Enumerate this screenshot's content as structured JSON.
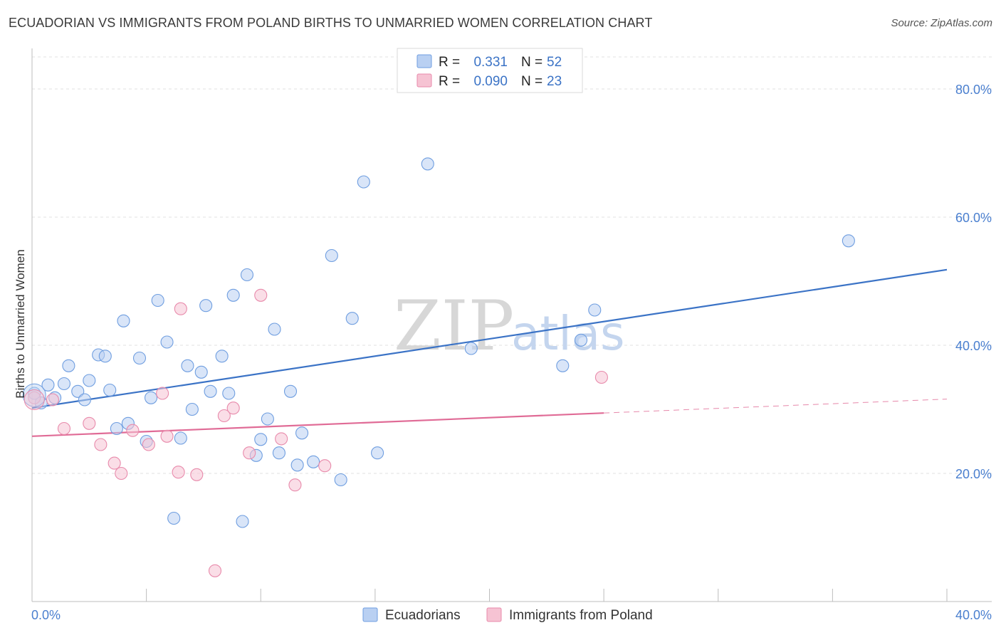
{
  "title": "ECUADORIAN VS IMMIGRANTS FROM POLAND BIRTHS TO UNMARRIED WOMEN CORRELATION CHART",
  "source": "Source: ZipAtlas.com",
  "watermark": {
    "zip": "ZIP",
    "atlas": "atlas"
  },
  "colors": {
    "blue": "#3b73c6",
    "blue_fill": "#b9d0f2",
    "pink": "#e06b96",
    "pink_fill": "#f6c3d3",
    "grid": "#e2e2e2",
    "tick_text": "#4a7fcf"
  },
  "legend": {
    "rows": [
      {
        "r_label": "R = ",
        "r_value": "0.331",
        "n_label": "N = ",
        "n_value": "52"
      },
      {
        "r_label": "R = ",
        "r_value": "0.090",
        "n_label": "N = ",
        "n_value": "23"
      }
    ]
  },
  "chart_data": {
    "type": "scatter",
    "title": "ECUADORIAN VS IMMIGRANTS FROM POLAND BIRTHS TO UNMARRIED WOMEN CORRELATION CHART",
    "xlabel": "",
    "ylabel": "Births to Unmarried Women",
    "xlim": [
      0,
      40
    ],
    "ylim": [
      0,
      85
    ],
    "x_tick_labels": [
      "0.0%",
      "40.0%"
    ],
    "y_ticks": [
      20,
      40,
      60,
      80
    ],
    "y_tick_labels": [
      "20.0%",
      "40.0%",
      "60.0%",
      "80.0%"
    ],
    "grid": true,
    "legend_position": "top-center",
    "series": [
      {
        "name": "Ecuadorians",
        "color": "#3b73c6",
        "points": [
          [
            0.1,
            32.5
          ],
          [
            0.4,
            31.0
          ],
          [
            0.7,
            33.8
          ],
          [
            1.0,
            31.8
          ],
          [
            1.4,
            34.0
          ],
          [
            1.6,
            36.8
          ],
          [
            2.0,
            32.8
          ],
          [
            2.3,
            31.5
          ],
          [
            2.5,
            34.5
          ],
          [
            2.9,
            38.5
          ],
          [
            3.2,
            38.3
          ],
          [
            3.4,
            33.0
          ],
          [
            3.7,
            27.0
          ],
          [
            4.0,
            43.8
          ],
          [
            4.2,
            27.8
          ],
          [
            4.7,
            38.0
          ],
          [
            5.0,
            25.0
          ],
          [
            5.2,
            31.8
          ],
          [
            5.5,
            47.0
          ],
          [
            5.9,
            40.5
          ],
          [
            6.2,
            13.0
          ],
          [
            6.5,
            25.5
          ],
          [
            6.8,
            36.8
          ],
          [
            7.0,
            30.0
          ],
          [
            7.4,
            35.8
          ],
          [
            7.6,
            46.2
          ],
          [
            7.8,
            32.8
          ],
          [
            8.3,
            38.3
          ],
          [
            8.6,
            32.5
          ],
          [
            8.8,
            47.8
          ],
          [
            9.2,
            12.5
          ],
          [
            9.4,
            51.0
          ],
          [
            9.8,
            22.8
          ],
          [
            10.0,
            25.3
          ],
          [
            10.3,
            28.5
          ],
          [
            10.6,
            42.5
          ],
          [
            10.8,
            23.2
          ],
          [
            11.3,
            32.8
          ],
          [
            11.6,
            21.3
          ],
          [
            11.8,
            26.3
          ],
          [
            12.3,
            21.8
          ],
          [
            13.1,
            54.0
          ],
          [
            13.5,
            19.0
          ],
          [
            14.0,
            44.2
          ],
          [
            14.5,
            65.5
          ],
          [
            15.1,
            23.2
          ],
          [
            17.3,
            68.3
          ],
          [
            19.2,
            39.5
          ],
          [
            23.2,
            36.8
          ],
          [
            24.0,
            40.8
          ],
          [
            24.6,
            45.5
          ],
          [
            35.7,
            56.3
          ]
        ]
      },
      {
        "name": "Immigrants from Poland",
        "color": "#e06b96",
        "points": [
          [
            0.1,
            31.8
          ],
          [
            0.9,
            31.5
          ],
          [
            1.4,
            27.0
          ],
          [
            2.5,
            27.8
          ],
          [
            3.0,
            24.5
          ],
          [
            3.6,
            21.6
          ],
          [
            3.9,
            20.0
          ],
          [
            4.4,
            26.7
          ],
          [
            5.1,
            24.5
          ],
          [
            5.7,
            32.5
          ],
          [
            5.9,
            25.8
          ],
          [
            6.4,
            20.2
          ],
          [
            6.5,
            45.7
          ],
          [
            7.2,
            19.8
          ],
          [
            8.0,
            4.8
          ],
          [
            8.4,
            29.0
          ],
          [
            8.8,
            30.2
          ],
          [
            9.5,
            23.2
          ],
          [
            10.0,
            47.8
          ],
          [
            10.9,
            25.4
          ],
          [
            11.5,
            18.2
          ],
          [
            12.8,
            21.2
          ],
          [
            24.9,
            35.0
          ]
        ]
      }
    ],
    "trend_lines": [
      {
        "series": "Ecuadorians",
        "x": [
          0,
          40
        ],
        "y": [
          30.2,
          51.8
        ],
        "dashed_from": null
      },
      {
        "series": "Immigrants from Poland",
        "x": [
          0,
          40
        ],
        "y": [
          25.8,
          31.6
        ],
        "dashed_from": 25.0
      }
    ]
  }
}
